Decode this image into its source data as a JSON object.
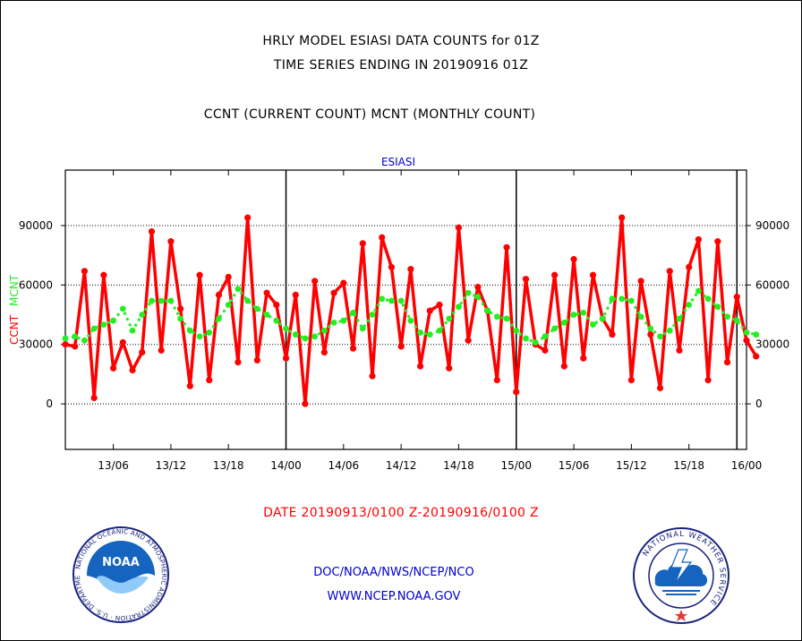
{
  "header": {
    "title_line1": "HRLY MODEL ESIASI DATA COUNTS for 01Z",
    "title_line2": "TIME SERIES ENDING IN 20190916 01Z",
    "subtitle": "CCNT (CURRENT COUNT) MCNT (MONTHLY COUNT)"
  },
  "footer": {
    "date_label": "DATE 20190913/0100 Z-20190916/0100 Z",
    "org_line": "DOC/NOAA/NWS/NCEP/NCO",
    "url": "WWW.NCEP.NOAA.GOV"
  },
  "logos": {
    "noaa_text": "NOAA",
    "noaa_ring": "NATIONAL OCEANIC AND ATMOSPHERIC ADMINISTRATION · U.S. DEPARTMENT OF COMMERCE",
    "nws_ring": "NATIONAL WEATHER SERVICE"
  },
  "colors": {
    "ccnt": "#ff0000",
    "mcnt": "#22ee22",
    "axis": "#000000",
    "text_blue": "#0000cc"
  },
  "chart_data": {
    "type": "line",
    "title": "ESIASI",
    "ylabel_parts": [
      {
        "text": "CCNT",
        "color": "#ff0000"
      },
      {
        "text": "MCNT",
        "color": "#22ee22"
      }
    ],
    "xlim": [
      0,
      71
    ],
    "ylim": [
      -23000,
      118000
    ],
    "yticks": [
      0,
      30000,
      60000,
      90000
    ],
    "ytick_labels": [
      "0",
      "30000",
      "60000",
      "90000"
    ],
    "xticks": [
      5,
      11,
      17,
      23,
      29,
      35,
      41,
      47,
      53,
      59,
      65,
      71
    ],
    "xtick_labels": [
      "13/06",
      "13/12",
      "13/18",
      "14/00",
      "14/06",
      "14/12",
      "14/18",
      "15/00",
      "15/06",
      "15/12",
      "15/18",
      "16/00"
    ],
    "day_boundaries": [
      23,
      47,
      70
    ],
    "grid": true,
    "series": [
      {
        "name": "CCNT",
        "color": "#ff0000",
        "values": [
          30000,
          29000,
          67000,
          3000,
          65000,
          18000,
          31000,
          17000,
          26000,
          87000,
          27000,
          82000,
          48000,
          9000,
          65000,
          12000,
          55000,
          64000,
          21000,
          94000,
          22000,
          56000,
          50000,
          23000,
          55000,
          0,
          62000,
          26000,
          56000,
          61000,
          28000,
          81000,
          14000,
          84000,
          69000,
          29000,
          68000,
          19000,
          47000,
          50000,
          18000,
          89000,
          32000,
          59000,
          47000,
          12000,
          79000,
          6000,
          63000,
          30000,
          27000,
          65000,
          19000,
          73000,
          23000,
          65000,
          43000,
          35000,
          94000,
          12000,
          62000,
          35000,
          8000,
          67000,
          27000,
          69000,
          83000,
          12000,
          82000,
          21000,
          54000,
          32000,
          24000
        ]
      },
      {
        "name": "MCNT",
        "color": "#22ee22",
        "values": [
          33000,
          34000,
          32000,
          38000,
          40000,
          42000,
          48000,
          37000,
          45000,
          52000,
          52000,
          52000,
          43000,
          37000,
          34000,
          36000,
          43000,
          50000,
          58000,
          52000,
          48000,
          45000,
          42000,
          38000,
          35000,
          33000,
          34000,
          37000,
          41000,
          42000,
          46000,
          38000,
          45000,
          53000,
          52000,
          52000,
          42000,
          36000,
          35000,
          37000,
          43000,
          49000,
          56000,
          54000,
          47000,
          44000,
          43000,
          37000,
          33000,
          31000,
          34000,
          38000,
          41000,
          45000,
          46000,
          40000,
          43000,
          53000,
          53000,
          52000,
          44000,
          38000,
          34000,
          37000,
          43000,
          50000,
          57000,
          53000,
          49000,
          44000,
          42000,
          36000,
          35000
        ]
      }
    ]
  }
}
